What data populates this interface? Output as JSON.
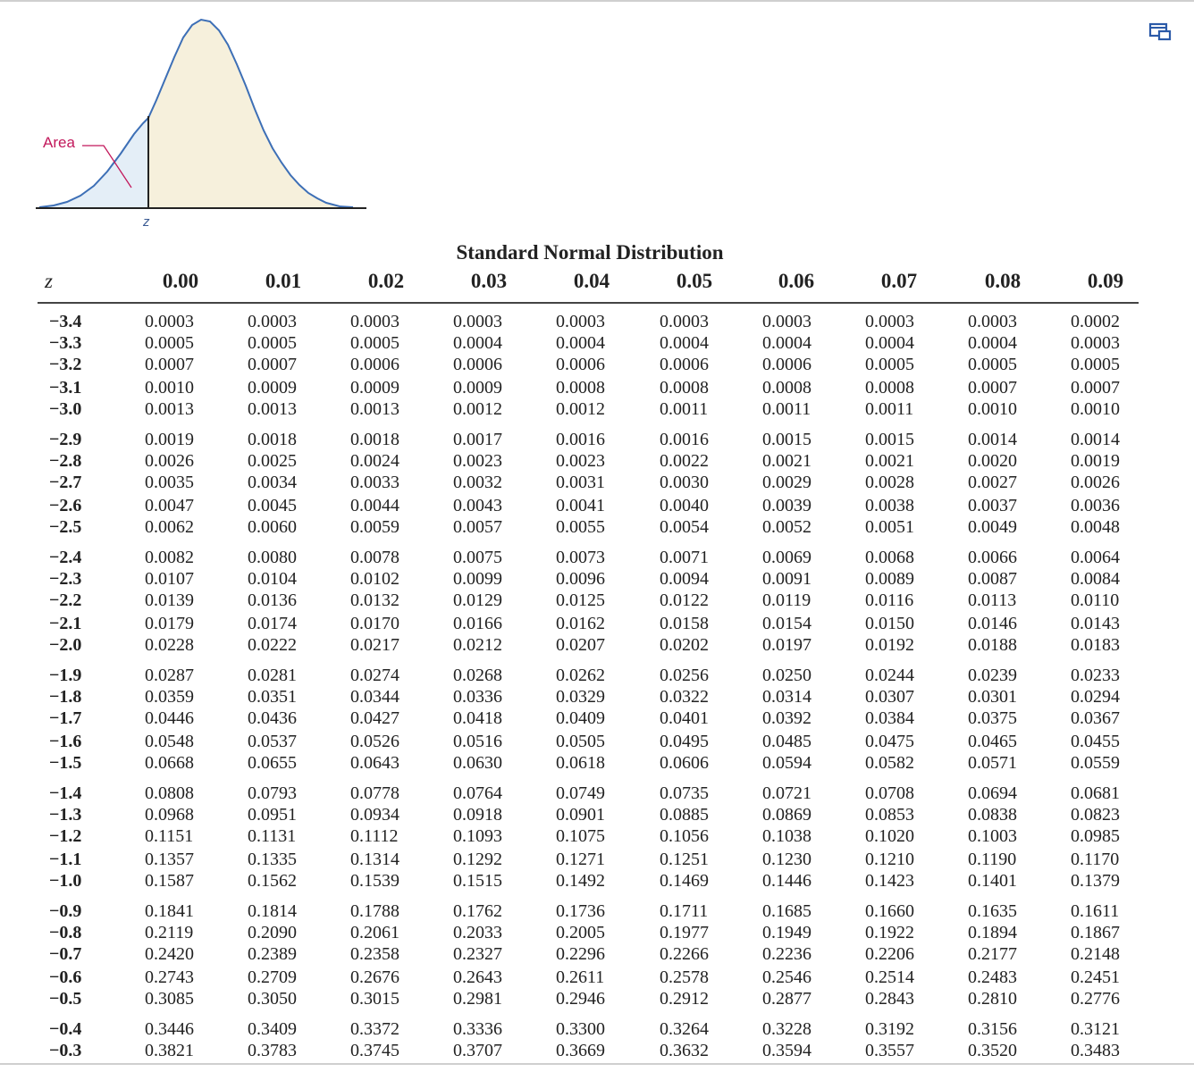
{
  "diagram": {
    "area_label": "Area",
    "z_label": "z",
    "icon": "expand-window-icon"
  },
  "table": {
    "title": "Standard Normal Distribution",
    "z_header": "z",
    "columns": [
      "0.00",
      "0.01",
      "0.02",
      "0.03",
      "0.04",
      "0.05",
      "0.06",
      "0.07",
      "0.08",
      "0.09"
    ],
    "rows": [
      {
        "z": "−3.4",
        "values": [
          "0.0003",
          "0.0003",
          "0.0003",
          "0.0003",
          "0.0003",
          "0.0003",
          "0.0003",
          "0.0003",
          "0.0003",
          "0.0002"
        ]
      },
      {
        "z": "−3.3",
        "values": [
          "0.0005",
          "0.0005",
          "0.0005",
          "0.0004",
          "0.0004",
          "0.0004",
          "0.0004",
          "0.0004",
          "0.0004",
          "0.0003"
        ]
      },
      {
        "z": "−3.2",
        "values": [
          "0.0007",
          "0.0007",
          "0.0006",
          "0.0006",
          "0.0006",
          "0.0006",
          "0.0006",
          "0.0005",
          "0.0005",
          "0.0005"
        ]
      },
      {
        "z": "−3.1",
        "values": [
          "0.0010",
          "0.0009",
          "0.0009",
          "0.0009",
          "0.0008",
          "0.0008",
          "0.0008",
          "0.0008",
          "0.0007",
          "0.0007"
        ]
      },
      {
        "z": "−3.0",
        "values": [
          "0.0013",
          "0.0013",
          "0.0013",
          "0.0012",
          "0.0012",
          "0.0011",
          "0.0011",
          "0.0011",
          "0.0010",
          "0.0010"
        ]
      },
      {
        "z": "−2.9",
        "values": [
          "0.0019",
          "0.0018",
          "0.0018",
          "0.0017",
          "0.0016",
          "0.0016",
          "0.0015",
          "0.0015",
          "0.0014",
          "0.0014"
        ]
      },
      {
        "z": "−2.8",
        "values": [
          "0.0026",
          "0.0025",
          "0.0024",
          "0.0023",
          "0.0023",
          "0.0022",
          "0.0021",
          "0.0021",
          "0.0020",
          "0.0019"
        ]
      },
      {
        "z": "−2.7",
        "values": [
          "0.0035",
          "0.0034",
          "0.0033",
          "0.0032",
          "0.0031",
          "0.0030",
          "0.0029",
          "0.0028",
          "0.0027",
          "0.0026"
        ]
      },
      {
        "z": "−2.6",
        "values": [
          "0.0047",
          "0.0045",
          "0.0044",
          "0.0043",
          "0.0041",
          "0.0040",
          "0.0039",
          "0.0038",
          "0.0037",
          "0.0036"
        ]
      },
      {
        "z": "−2.5",
        "values": [
          "0.0062",
          "0.0060",
          "0.0059",
          "0.0057",
          "0.0055",
          "0.0054",
          "0.0052",
          "0.0051",
          "0.0049",
          "0.0048"
        ]
      },
      {
        "z": "−2.4",
        "values": [
          "0.0082",
          "0.0080",
          "0.0078",
          "0.0075",
          "0.0073",
          "0.0071",
          "0.0069",
          "0.0068",
          "0.0066",
          "0.0064"
        ]
      },
      {
        "z": "−2.3",
        "values": [
          "0.0107",
          "0.0104",
          "0.0102",
          "0.0099",
          "0.0096",
          "0.0094",
          "0.0091",
          "0.0089",
          "0.0087",
          "0.0084"
        ]
      },
      {
        "z": "−2.2",
        "values": [
          "0.0139",
          "0.0136",
          "0.0132",
          "0.0129",
          "0.0125",
          "0.0122",
          "0.0119",
          "0.0116",
          "0.0113",
          "0.0110"
        ]
      },
      {
        "z": "−2.1",
        "values": [
          "0.0179",
          "0.0174",
          "0.0170",
          "0.0166",
          "0.0162",
          "0.0158",
          "0.0154",
          "0.0150",
          "0.0146",
          "0.0143"
        ]
      },
      {
        "z": "−2.0",
        "values": [
          "0.0228",
          "0.0222",
          "0.0217",
          "0.0212",
          "0.0207",
          "0.0202",
          "0.0197",
          "0.0192",
          "0.0188",
          "0.0183"
        ]
      },
      {
        "z": "−1.9",
        "values": [
          "0.0287",
          "0.0281",
          "0.0274",
          "0.0268",
          "0.0262",
          "0.0256",
          "0.0250",
          "0.0244",
          "0.0239",
          "0.0233"
        ]
      },
      {
        "z": "−1.8",
        "values": [
          "0.0359",
          "0.0351",
          "0.0344",
          "0.0336",
          "0.0329",
          "0.0322",
          "0.0314",
          "0.0307",
          "0.0301",
          "0.0294"
        ]
      },
      {
        "z": "−1.7",
        "values": [
          "0.0446",
          "0.0436",
          "0.0427",
          "0.0418",
          "0.0409",
          "0.0401",
          "0.0392",
          "0.0384",
          "0.0375",
          "0.0367"
        ]
      },
      {
        "z": "−1.6",
        "values": [
          "0.0548",
          "0.0537",
          "0.0526",
          "0.0516",
          "0.0505",
          "0.0495",
          "0.0485",
          "0.0475",
          "0.0465",
          "0.0455"
        ]
      },
      {
        "z": "−1.5",
        "values": [
          "0.0668",
          "0.0655",
          "0.0643",
          "0.0630",
          "0.0618",
          "0.0606",
          "0.0594",
          "0.0582",
          "0.0571",
          "0.0559"
        ]
      },
      {
        "z": "−1.4",
        "values": [
          "0.0808",
          "0.0793",
          "0.0778",
          "0.0764",
          "0.0749",
          "0.0735",
          "0.0721",
          "0.0708",
          "0.0694",
          "0.0681"
        ]
      },
      {
        "z": "−1.3",
        "values": [
          "0.0968",
          "0.0951",
          "0.0934",
          "0.0918",
          "0.0901",
          "0.0885",
          "0.0869",
          "0.0853",
          "0.0838",
          "0.0823"
        ]
      },
      {
        "z": "−1.2",
        "values": [
          "0.1151",
          "0.1131",
          "0.1112",
          "0.1093",
          "0.1075",
          "0.1056",
          "0.1038",
          "0.1020",
          "0.1003",
          "0.0985"
        ]
      },
      {
        "z": "−1.1",
        "values": [
          "0.1357",
          "0.1335",
          "0.1314",
          "0.1292",
          "0.1271",
          "0.1251",
          "0.1230",
          "0.1210",
          "0.1190",
          "0.1170"
        ]
      },
      {
        "z": "−1.0",
        "values": [
          "0.1587",
          "0.1562",
          "0.1539",
          "0.1515",
          "0.1492",
          "0.1469",
          "0.1446",
          "0.1423",
          "0.1401",
          "0.1379"
        ]
      },
      {
        "z": "−0.9",
        "values": [
          "0.1841",
          "0.1814",
          "0.1788",
          "0.1762",
          "0.1736",
          "0.1711",
          "0.1685",
          "0.1660",
          "0.1635",
          "0.1611"
        ]
      },
      {
        "z": "−0.8",
        "values": [
          "0.2119",
          "0.2090",
          "0.2061",
          "0.2033",
          "0.2005",
          "0.1977",
          "0.1949",
          "0.1922",
          "0.1894",
          "0.1867"
        ]
      },
      {
        "z": "−0.7",
        "values": [
          "0.2420",
          "0.2389",
          "0.2358",
          "0.2327",
          "0.2296",
          "0.2266",
          "0.2236",
          "0.2206",
          "0.2177",
          "0.2148"
        ]
      },
      {
        "z": "−0.6",
        "values": [
          "0.2743",
          "0.2709",
          "0.2676",
          "0.2643",
          "0.2611",
          "0.2578",
          "0.2546",
          "0.2514",
          "0.2483",
          "0.2451"
        ]
      },
      {
        "z": "−0.5",
        "values": [
          "0.3085",
          "0.3050",
          "0.3015",
          "0.2981",
          "0.2946",
          "0.2912",
          "0.2877",
          "0.2843",
          "0.2810",
          "0.2776"
        ]
      },
      {
        "z": "−0.4",
        "values": [
          "0.3446",
          "0.3409",
          "0.3372",
          "0.3336",
          "0.3300",
          "0.3264",
          "0.3228",
          "0.3192",
          "0.3156",
          "0.3121"
        ]
      },
      {
        "z": "−0.3",
        "values": [
          "0.3821",
          "0.3783",
          "0.3745",
          "0.3707",
          "0.3669",
          "0.3632",
          "0.3594",
          "0.3557",
          "0.3520",
          "0.3483"
        ]
      }
    ]
  }
}
